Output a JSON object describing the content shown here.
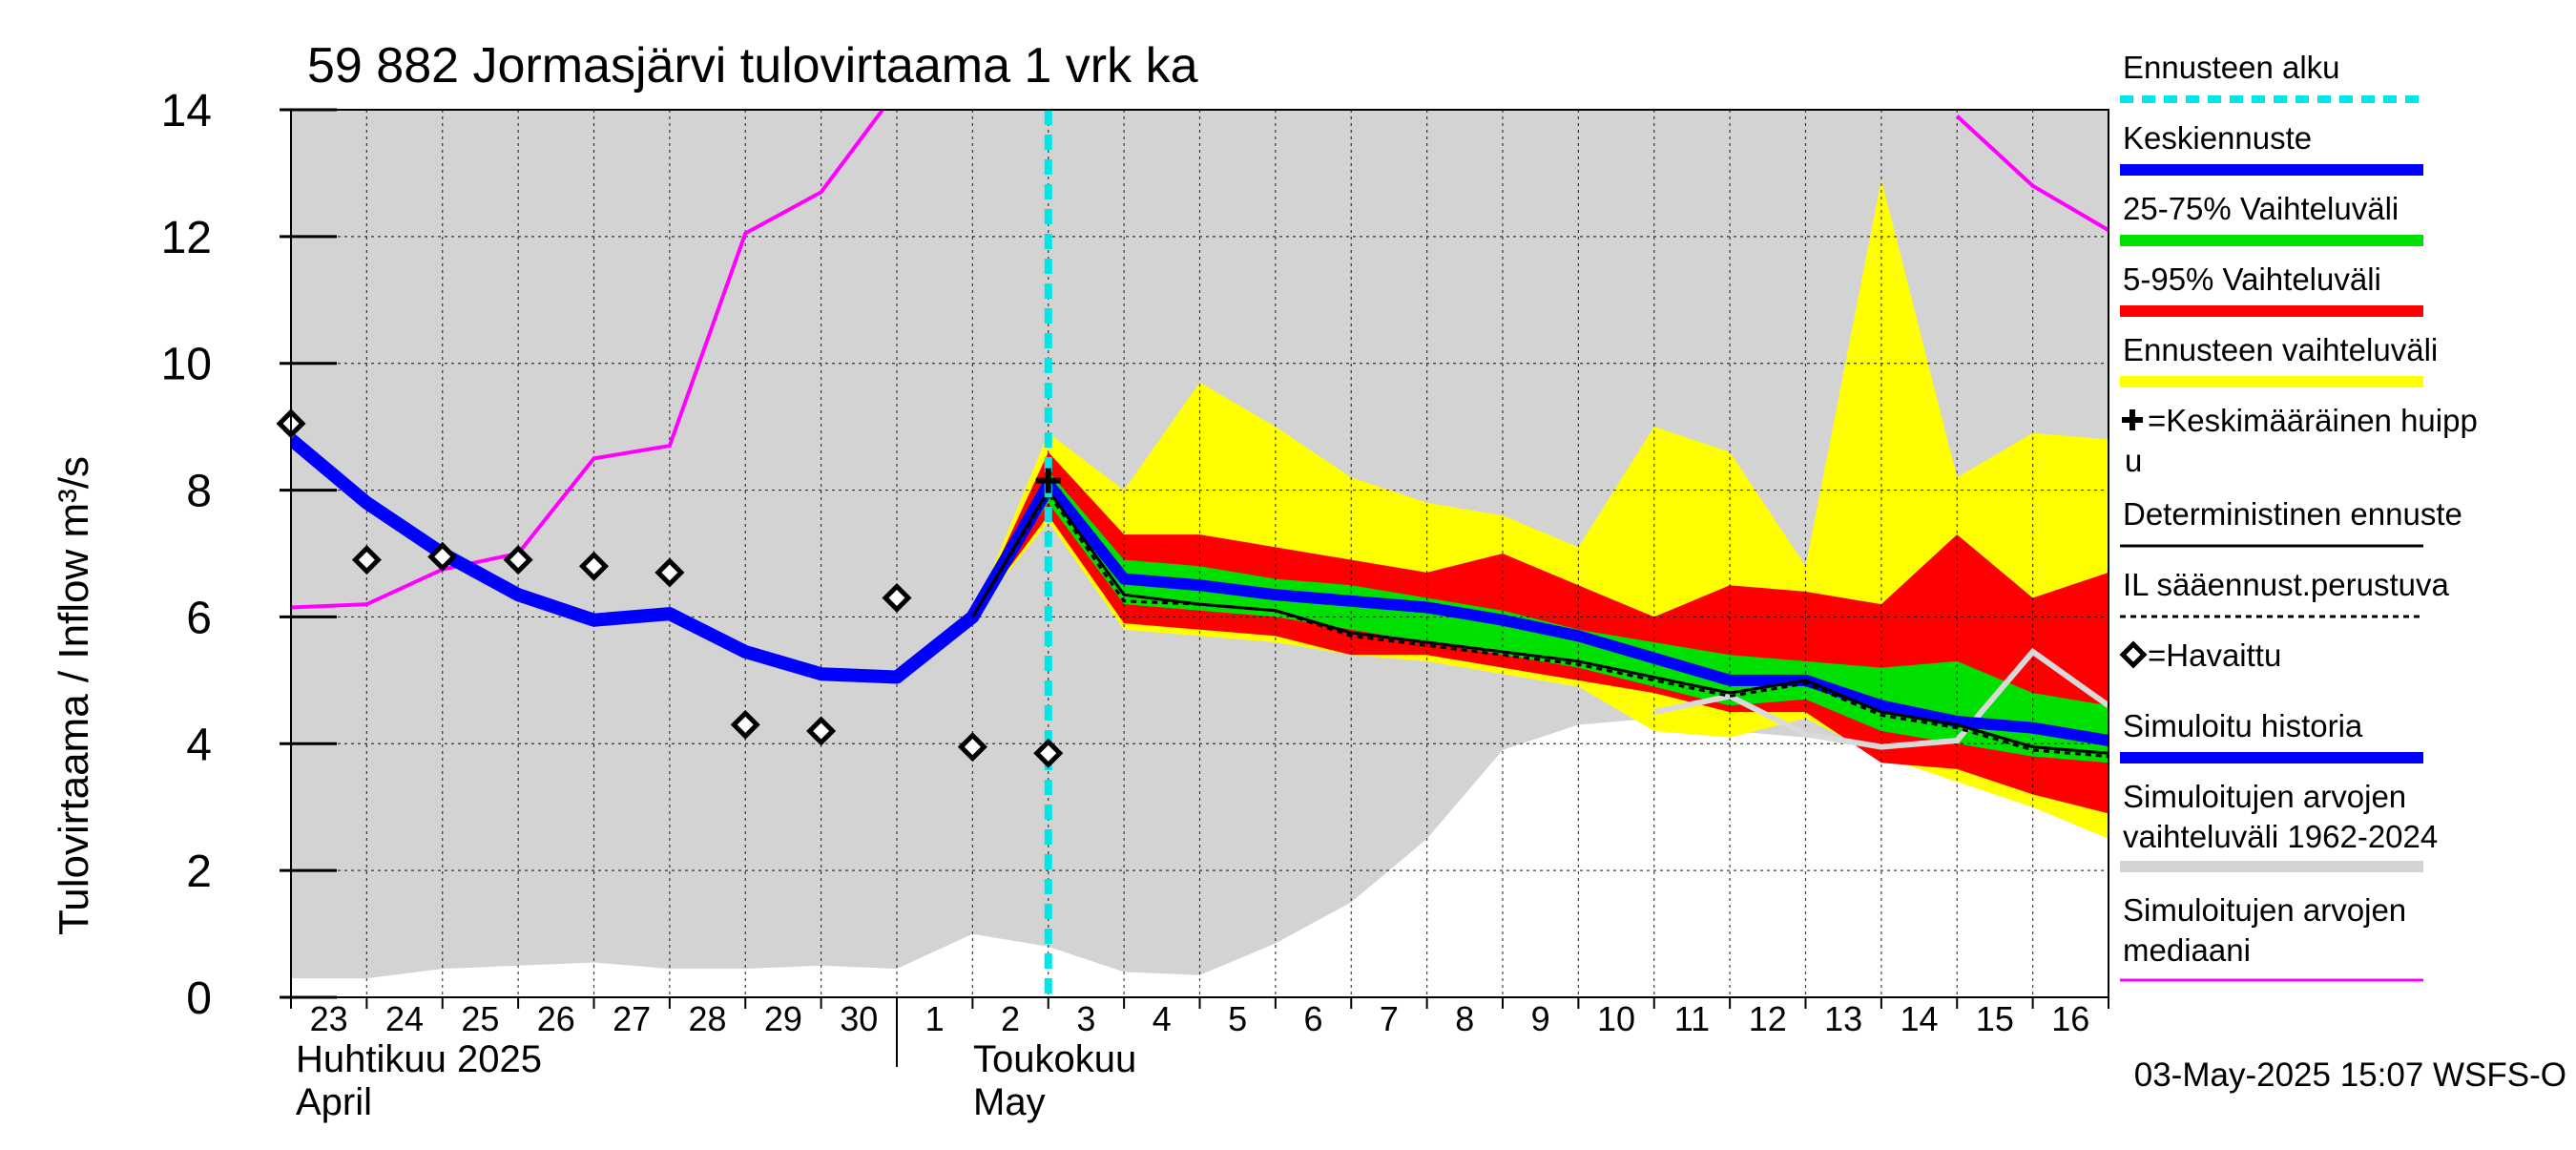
{
  "chart_data": {
    "type": "area",
    "title": "59 882 Jormasjärvi tulovirtaama 1 vrk ka",
    "ylabel": "Tulovirtaama / Inflow   m³/s",
    "ylim": [
      0,
      14
    ],
    "yticks": [
      0,
      2,
      4,
      6,
      8,
      10,
      12,
      14
    ],
    "x_day_labels": [
      "23",
      "24",
      "25",
      "26",
      "27",
      "28",
      "29",
      "30",
      "1",
      "2",
      "3",
      "4",
      "5",
      "6",
      "7",
      "8",
      "9",
      "10",
      "11",
      "12",
      "13",
      "14",
      "15",
      "16"
    ],
    "month_labels": {
      "april_fi": "Huhtikuu  2025",
      "april_en": "April",
      "may_fi": "Toukokuu",
      "may_en": "May"
    },
    "timestamp": "03-May-2025 15:07 WSFS-O",
    "forecast_start_index": 10,
    "series": {
      "sim_range_upper": [
        14,
        14,
        14,
        14,
        14,
        14,
        14,
        14,
        14,
        14,
        14,
        14,
        14,
        14,
        14,
        14,
        14,
        14,
        14,
        14,
        14,
        14,
        14,
        14,
        14
      ],
      "sim_range_lower": [
        0.3,
        0.3,
        0.45,
        0.5,
        0.55,
        0.45,
        0.45,
        0.5,
        0.45,
        1.0,
        0.8,
        0.4,
        0.35,
        0.85,
        1.5,
        2.5,
        3.9,
        4.3,
        4.4,
        4.2,
        4.1,
        4.0,
        3.9,
        4.0,
        4.0
      ],
      "median": [
        6.15,
        6.2,
        6.75,
        7.0,
        8.5,
        8.7,
        12.05,
        12.7,
        14.3,
        null,
        null,
        null,
        null,
        null,
        null,
        null,
        null,
        null,
        null,
        null,
        null,
        null,
        13.9,
        12.8,
        12.1
      ],
      "forecast_range_upper": [
        null,
        null,
        null,
        null,
        null,
        null,
        null,
        null,
        null,
        6.0,
        8.9,
        8.0,
        9.7,
        9.0,
        8.2,
        7.8,
        7.6,
        7.1,
        9.0,
        8.6,
        6.8,
        12.9,
        8.2,
        8.9,
        8.8
      ],
      "forecast_range_lower": [
        null,
        null,
        null,
        null,
        null,
        null,
        null,
        null,
        null,
        6.0,
        7.5,
        5.8,
        5.7,
        5.6,
        5.4,
        5.3,
        5.1,
        4.9,
        4.2,
        4.1,
        4.4,
        3.8,
        3.4,
        3.0,
        2.5
      ],
      "p5_95_upper": [
        null,
        null,
        null,
        null,
        null,
        null,
        null,
        null,
        null,
        6.0,
        8.6,
        7.3,
        7.3,
        7.1,
        6.9,
        6.7,
        7.0,
        6.5,
        6.0,
        6.5,
        6.4,
        6.2,
        7.3,
        6.3,
        6.7
      ],
      "p5_95_lower": [
        null,
        null,
        null,
        null,
        null,
        null,
        null,
        null,
        null,
        6.0,
        7.6,
        5.9,
        5.8,
        5.7,
        5.4,
        5.4,
        5.2,
        5.0,
        4.8,
        4.5,
        4.5,
        3.7,
        3.6,
        3.2,
        2.9
      ],
      "p25_75_upper": [
        null,
        null,
        null,
        null,
        null,
        null,
        null,
        null,
        null,
        6.0,
        8.3,
        6.9,
        6.8,
        6.6,
        6.5,
        6.3,
        6.1,
        5.8,
        5.6,
        5.4,
        5.3,
        5.2,
        5.3,
        4.8,
        4.6
      ],
      "p25_75_lower": [
        null,
        null,
        null,
        null,
        null,
        null,
        null,
        null,
        null,
        6.0,
        7.8,
        6.2,
        6.1,
        6.0,
        5.8,
        5.6,
        5.4,
        5.2,
        4.9,
        4.6,
        4.7,
        4.2,
        4.0,
        3.8,
        3.7
      ],
      "mean_forecast": [
        null,
        null,
        null,
        null,
        null,
        null,
        null,
        null,
        null,
        6.0,
        8.1,
        6.6,
        6.5,
        6.35,
        6.25,
        6.15,
        5.95,
        5.7,
        5.35,
        5.0,
        5.0,
        4.6,
        4.35,
        4.25,
        4.05
      ],
      "deterministic": [
        null,
        null,
        null,
        null,
        null,
        null,
        null,
        null,
        null,
        6.0,
        8.0,
        6.35,
        6.2,
        6.1,
        5.75,
        5.6,
        5.45,
        5.3,
        5.05,
        4.8,
        5.0,
        4.5,
        4.3,
        3.95,
        3.85
      ],
      "il_weather": [
        null,
        null,
        null,
        null,
        null,
        null,
        null,
        null,
        null,
        6.0,
        7.95,
        6.25,
        6.2,
        6.1,
        5.7,
        5.55,
        5.4,
        5.25,
        5.0,
        4.75,
        4.95,
        4.45,
        4.25,
        3.9,
        3.8
      ],
      "simulated_history": [
        8.8,
        7.8,
        7.0,
        6.35,
        5.95,
        6.05,
        5.45,
        5.1,
        5.05,
        6.0,
        8.05
      ],
      "light_grey_line": [
        null,
        null,
        null,
        null,
        null,
        null,
        null,
        null,
        null,
        null,
        null,
        null,
        null,
        null,
        null,
        null,
        null,
        null,
        4.5,
        4.75,
        4.15,
        3.95,
        4.05,
        5.45,
        4.6
      ],
      "observed": [
        [
          0,
          9.05
        ],
        [
          1,
          6.9
        ],
        [
          2,
          6.95
        ],
        [
          3,
          6.9
        ],
        [
          4,
          6.8
        ],
        [
          5,
          6.7
        ],
        [
          6,
          4.3
        ],
        [
          7,
          4.2
        ],
        [
          8,
          6.3
        ],
        [
          9,
          3.95
        ],
        [
          10,
          3.85
        ]
      ],
      "peak_marker": [
        10,
        8.15
      ]
    },
    "legend": [
      {
        "label": "Ennusteen alku",
        "color": "#00e5e5",
        "style": "dashed"
      },
      {
        "label": "Keskiennuste",
        "color": "#0000ff",
        "style": "thick"
      },
      {
        "label": "25-75% Vaihteluväli",
        "color": "#00e000",
        "style": "thick"
      },
      {
        "label": "5-95% Vaihteluväli",
        "color": "#ff0000",
        "style": "thick"
      },
      {
        "label": "Ennusteen vaihteluväli",
        "color": "#ffff00",
        "style": "thick"
      },
      {
        "label": "=Keskimääräinen huipp",
        "label2": "u",
        "color": "#000000",
        "style": "plus"
      },
      {
        "label": "Deterministinen ennuste",
        "color": "#000000",
        "style": "thin"
      },
      {
        "label": "IL sääennust.perustuva",
        "color": "#000000",
        "style": "dotted"
      },
      {
        "label": "=Havaittu",
        "color": "#000000",
        "style": "diamond"
      },
      {
        "label": "Simuloitu historia",
        "color": "#0000ff",
        "style": "thick"
      },
      {
        "label": "Simuloitujen arvojen",
        "label2": "vaihteluväli 1962-2024",
        "color": "#d3d3d3",
        "style": "thick"
      },
      {
        "label": "Simuloitujen arvojen",
        "label2": "mediaani",
        "color": "#ff00ff",
        "style": "thin"
      }
    ],
    "colors": {
      "sim_range": "#d3d3d3",
      "forecast_range": "#ffff00",
      "p5_95": "#ff0000",
      "p25_75": "#00e000",
      "mean": "#0000ff",
      "median": "#ff00ff",
      "forecast_start": "#00e5e5",
      "light_grey_line": "#d9d9d9"
    }
  }
}
